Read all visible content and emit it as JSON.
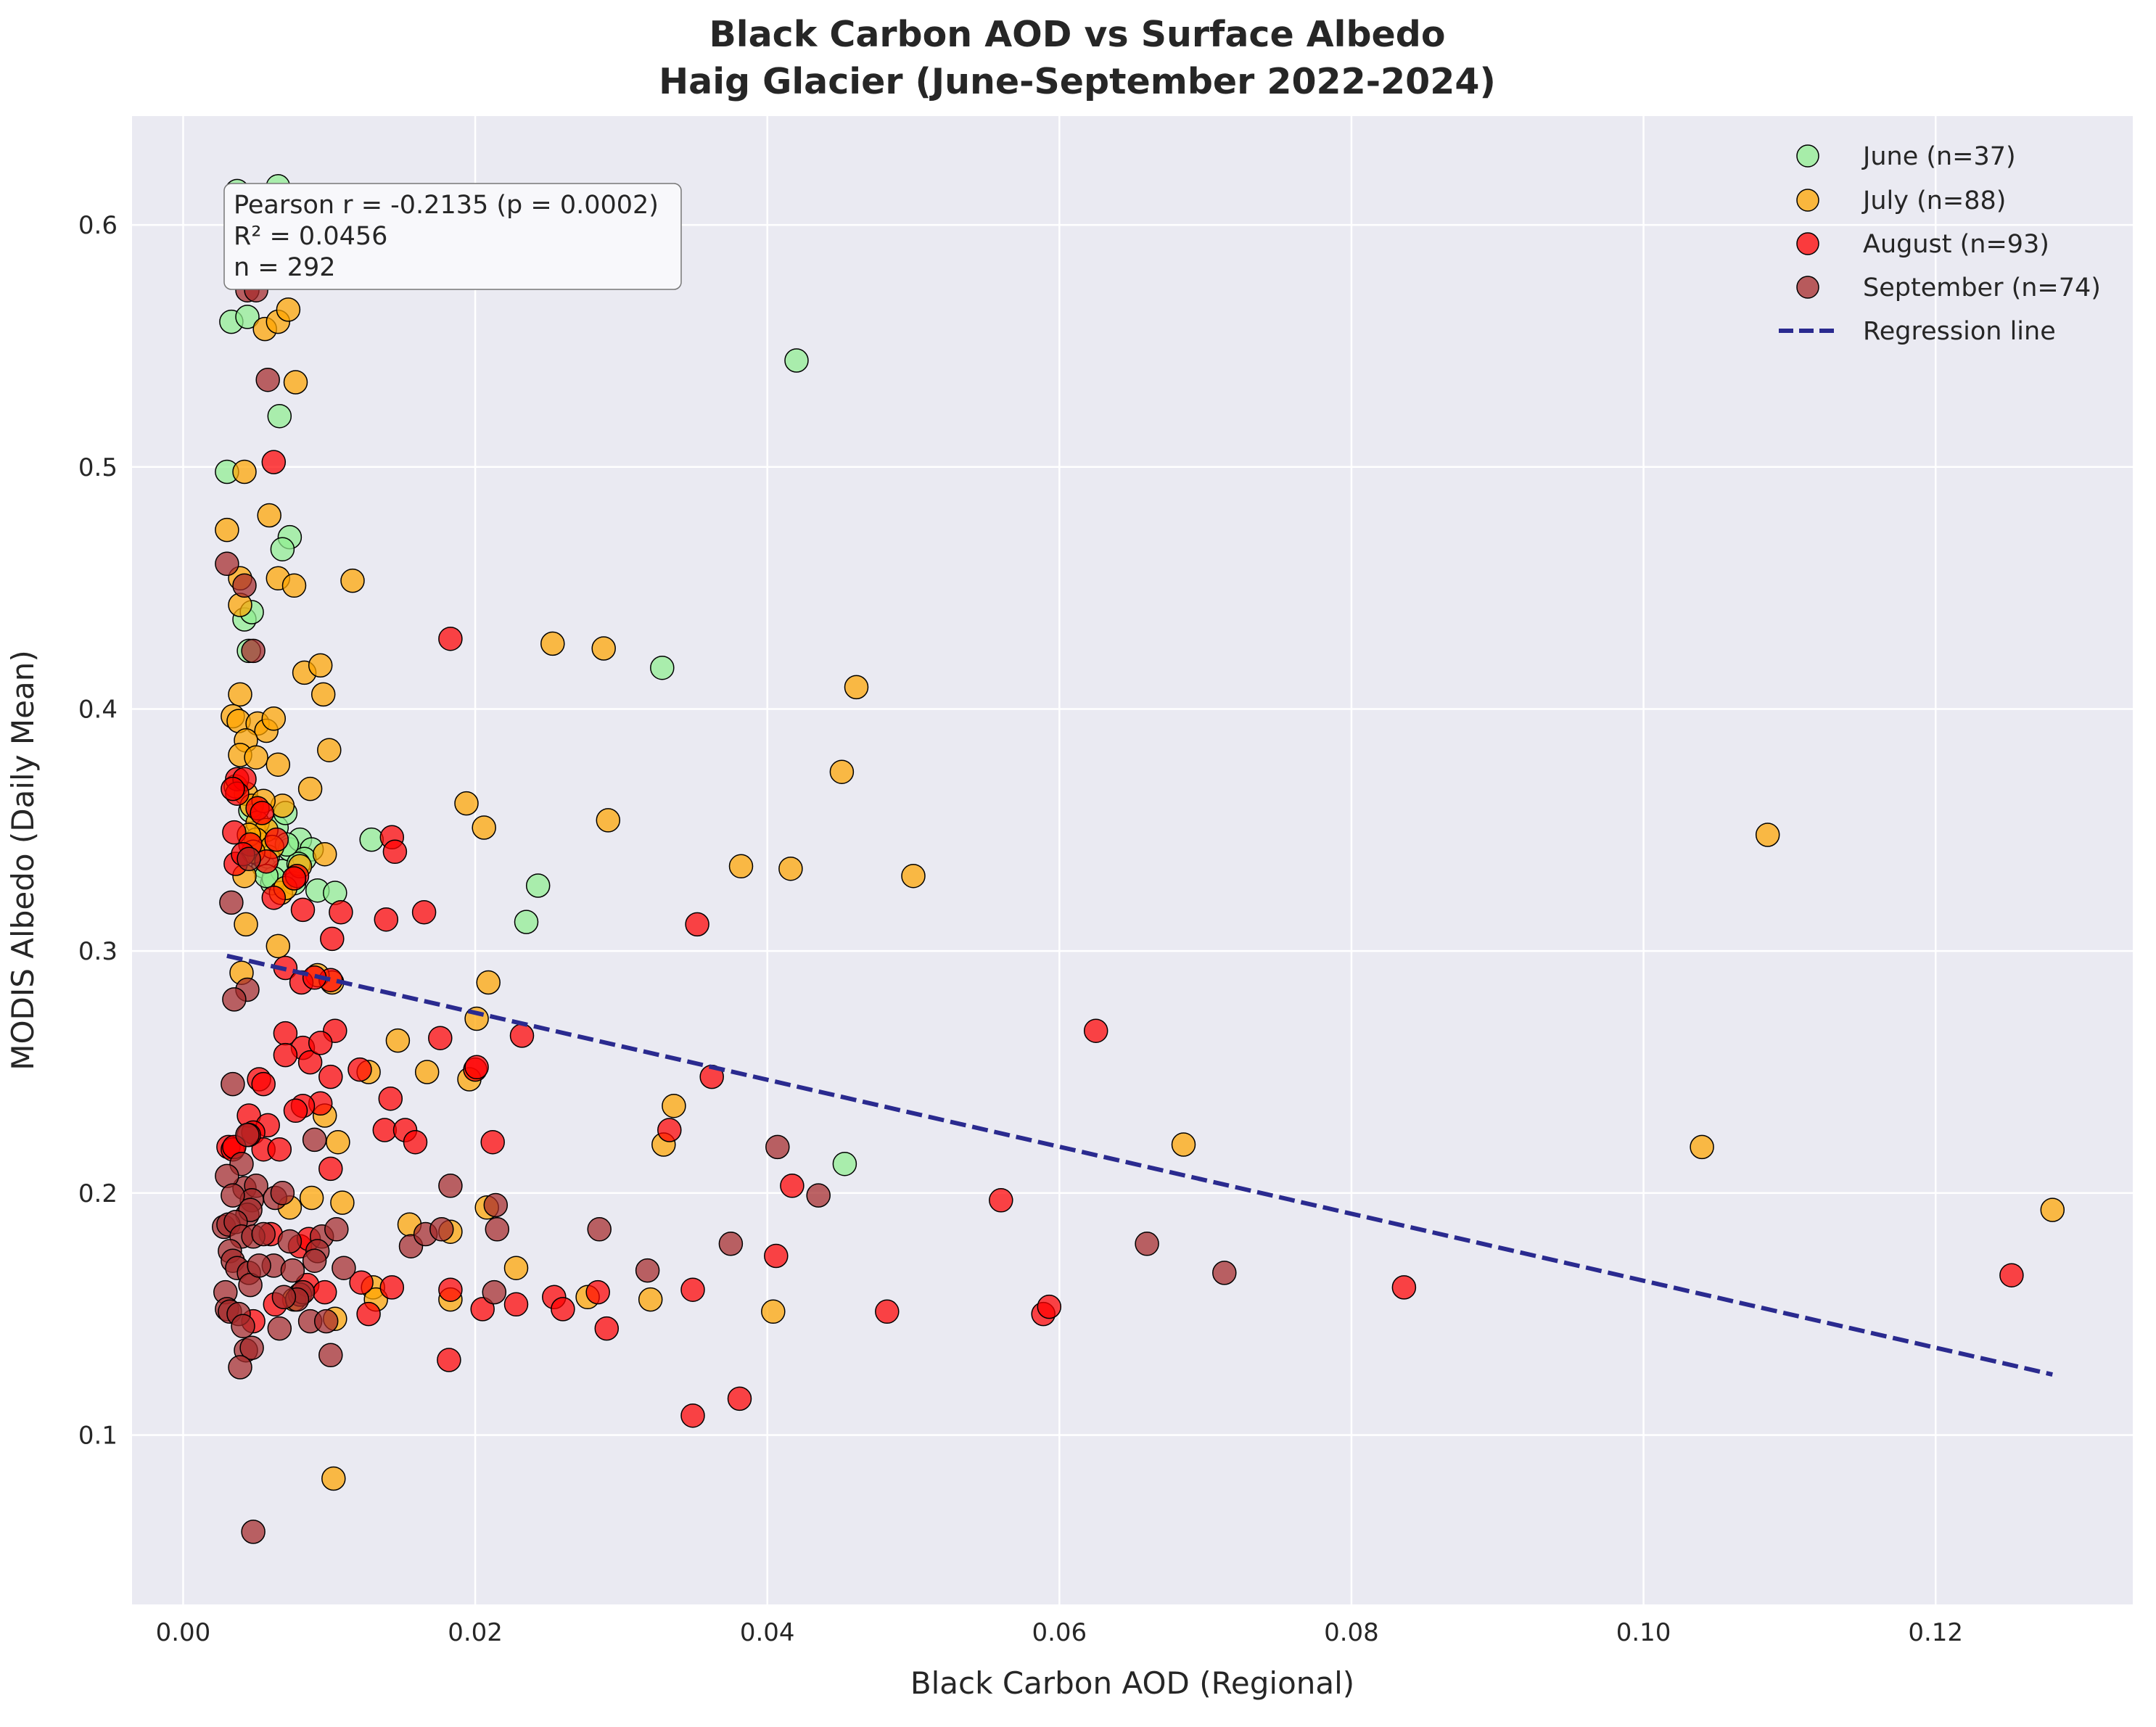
{
  "chart_data": {
    "type": "scatter",
    "title": "Black Carbon AOD vs Surface Albedo",
    "subtitle": "Haig Glacier (June-September 2022-2024)",
    "xlabel": "Black Carbon AOD (Regional)",
    "ylabel": "MODIS Albedo (Daily Mean)",
    "xlim": [
      -0.0035,
      0.1335
    ],
    "ylim": [
      0.03,
      0.645
    ],
    "xticks": [
      0.0,
      0.02,
      0.04,
      0.06,
      0.08,
      0.1,
      0.12
    ],
    "xtick_labels": [
      "0.00",
      "0.02",
      "0.04",
      "0.06",
      "0.08",
      "0.10",
      "0.12"
    ],
    "yticks": [
      0.1,
      0.2,
      0.3,
      0.4,
      0.5,
      0.6
    ],
    "ytick_labels": [
      "0.1",
      "0.2",
      "0.3",
      "0.4",
      "0.5",
      "0.6"
    ],
    "grid": true,
    "legend_position": "top-right",
    "stats_box": {
      "line1": "Pearson r = -0.2135 (p = 0.0002)",
      "line2": "R² = 0.0456",
      "line3": "n = 292"
    },
    "series": [
      {
        "name": "June (n=37)",
        "color": "#90ee90",
        "points": [
          [
            0.0037,
            0.614
          ],
          [
            0.0065,
            0.616
          ],
          [
            0.0033,
            0.56
          ],
          [
            0.0044,
            0.562
          ],
          [
            0.003,
            0.498
          ],
          [
            0.0066,
            0.521
          ],
          [
            0.0073,
            0.471
          ],
          [
            0.0068,
            0.466
          ],
          [
            0.0042,
            0.437
          ],
          [
            0.0047,
            0.44
          ],
          [
            0.0045,
            0.424
          ],
          [
            0.0055,
            0.335
          ],
          [
            0.0061,
            0.328
          ],
          [
            0.0068,
            0.333
          ],
          [
            0.0073,
            0.342
          ],
          [
            0.0076,
            0.328
          ],
          [
            0.008,
            0.346
          ],
          [
            0.0088,
            0.342
          ],
          [
            0.0092,
            0.325
          ],
          [
            0.0104,
            0.324
          ],
          [
            0.0129,
            0.346
          ],
          [
            0.0235,
            0.312
          ],
          [
            0.0243,
            0.327
          ],
          [
            0.0328,
            0.417
          ],
          [
            0.042,
            0.544
          ],
          [
            0.0453,
            0.212
          ],
          [
            0.005,
            0.349
          ],
          [
            0.0058,
            0.339
          ],
          [
            0.0064,
            0.351
          ],
          [
            0.007,
            0.357
          ],
          [
            0.0052,
            0.34
          ],
          [
            0.0046,
            0.358
          ],
          [
            0.0083,
            0.338
          ],
          [
            0.0079,
            0.336
          ],
          [
            0.0062,
            0.33
          ],
          [
            0.0057,
            0.331
          ],
          [
            0.0071,
            0.344
          ]
        ]
      },
      {
        "name": "July (n=88)",
        "color": "#ffa500",
        "points": [
          [
            0.0056,
            0.557
          ],
          [
            0.0065,
            0.56
          ],
          [
            0.0072,
            0.565
          ],
          [
            0.0077,
            0.535
          ],
          [
            0.0042,
            0.498
          ],
          [
            0.003,
            0.474
          ],
          [
            0.0059,
            0.48
          ],
          [
            0.0039,
            0.454
          ],
          [
            0.0065,
            0.454
          ],
          [
            0.0076,
            0.451
          ],
          [
            0.0039,
            0.443
          ],
          [
            0.0116,
            0.453
          ],
          [
            0.0083,
            0.415
          ],
          [
            0.0094,
            0.418
          ],
          [
            0.0096,
            0.406
          ],
          [
            0.0039,
            0.406
          ],
          [
            0.0034,
            0.397
          ],
          [
            0.0038,
            0.395
          ],
          [
            0.0051,
            0.394
          ],
          [
            0.0057,
            0.391
          ],
          [
            0.0062,
            0.396
          ],
          [
            0.0043,
            0.387
          ],
          [
            0.0039,
            0.381
          ],
          [
            0.005,
            0.38
          ],
          [
            0.0065,
            0.377
          ],
          [
            0.01,
            0.383
          ],
          [
            0.0087,
            0.367
          ],
          [
            0.0043,
            0.365
          ],
          [
            0.0047,
            0.36
          ],
          [
            0.0068,
            0.36
          ],
          [
            0.0051,
            0.353
          ],
          [
            0.0057,
            0.35
          ],
          [
            0.0097,
            0.34
          ],
          [
            0.0042,
            0.331
          ],
          [
            0.0067,
            0.324
          ],
          [
            0.0043,
            0.311
          ],
          [
            0.004,
            0.291
          ],
          [
            0.0102,
            0.287
          ],
          [
            0.0253,
            0.427
          ],
          [
            0.0288,
            0.425
          ],
          [
            0.0461,
            0.409
          ],
          [
            0.0451,
            0.374
          ],
          [
            0.0194,
            0.361
          ],
          [
            0.0206,
            0.351
          ],
          [
            0.0291,
            0.354
          ],
          [
            0.0382,
            0.335
          ],
          [
            0.0416,
            0.334
          ],
          [
            0.05,
            0.331
          ],
          [
            0.0209,
            0.287
          ],
          [
            0.1085,
            0.348
          ],
          [
            0.0201,
            0.272
          ],
          [
            0.0147,
            0.263
          ],
          [
            0.0127,
            0.25
          ],
          [
            0.0167,
            0.25
          ],
          [
            0.0196,
            0.247
          ],
          [
            0.0336,
            0.236
          ],
          [
            0.0329,
            0.22
          ],
          [
            0.0097,
            0.232
          ],
          [
            0.0106,
            0.221
          ],
          [
            0.0685,
            0.22
          ],
          [
            0.104,
            0.219
          ],
          [
            0.128,
            0.193
          ],
          [
            0.0155,
            0.187
          ],
          [
            0.0183,
            0.184
          ],
          [
            0.0208,
            0.194
          ],
          [
            0.0109,
            0.196
          ],
          [
            0.0088,
            0.198
          ],
          [
            0.0073,
            0.194
          ],
          [
            0.0228,
            0.169
          ],
          [
            0.013,
            0.161
          ],
          [
            0.0132,
            0.156
          ],
          [
            0.0183,
            0.156
          ],
          [
            0.0277,
            0.157
          ],
          [
            0.032,
            0.156
          ],
          [
            0.0404,
            0.151
          ],
          [
            0.0104,
            0.148
          ],
          [
            0.0076,
            0.156
          ],
          [
            0.0103,
            0.082
          ],
          [
            0.005,
            0.346
          ],
          [
            0.0055,
            0.362
          ],
          [
            0.0045,
            0.348
          ],
          [
            0.0061,
            0.343
          ],
          [
            0.008,
            0.335
          ],
          [
            0.0036,
            0.368
          ],
          [
            0.0048,
            0.341
          ],
          [
            0.007,
            0.326
          ],
          [
            0.0092,
            0.29
          ],
          [
            0.0065,
            0.302
          ]
        ]
      },
      {
        "name": "August (n=93)",
        "color": "#ff0000",
        "points": [
          [
            0.0062,
            0.502
          ],
          [
            0.0183,
            0.429
          ],
          [
            0.0037,
            0.371
          ],
          [
            0.0042,
            0.371
          ],
          [
            0.0037,
            0.365
          ],
          [
            0.0034,
            0.367
          ],
          [
            0.0051,
            0.359
          ],
          [
            0.0035,
            0.349
          ],
          [
            0.0064,
            0.346
          ],
          [
            0.0143,
            0.347
          ],
          [
            0.0145,
            0.341
          ],
          [
            0.0036,
            0.336
          ],
          [
            0.0046,
            0.344
          ],
          [
            0.0057,
            0.337
          ],
          [
            0.0078,
            0.331
          ],
          [
            0.0062,
            0.322
          ],
          [
            0.0082,
            0.317
          ],
          [
            0.0108,
            0.316
          ],
          [
            0.0139,
            0.313
          ],
          [
            0.0165,
            0.316
          ],
          [
            0.0352,
            0.311
          ],
          [
            0.0102,
            0.305
          ],
          [
            0.007,
            0.293
          ],
          [
            0.0101,
            0.288
          ],
          [
            0.0081,
            0.287
          ],
          [
            0.007,
            0.266
          ],
          [
            0.0104,
            0.267
          ],
          [
            0.0176,
            0.264
          ],
          [
            0.0232,
            0.265
          ],
          [
            0.0082,
            0.26
          ],
          [
            0.007,
            0.257
          ],
          [
            0.0087,
            0.254
          ],
          [
            0.0121,
            0.251
          ],
          [
            0.02,
            0.251
          ],
          [
            0.0101,
            0.248
          ],
          [
            0.0052,
            0.247
          ],
          [
            0.0362,
            0.248
          ],
          [
            0.0142,
            0.239
          ],
          [
            0.0045,
            0.232
          ],
          [
            0.0094,
            0.237
          ],
          [
            0.0082,
            0.236
          ],
          [
            0.0077,
            0.234
          ],
          [
            0.0058,
            0.228
          ],
          [
            0.0048,
            0.225
          ],
          [
            0.0138,
            0.226
          ],
          [
            0.0152,
            0.226
          ],
          [
            0.0333,
            0.226
          ],
          [
            0.0159,
            0.221
          ],
          [
            0.0212,
            0.221
          ],
          [
            0.0031,
            0.219
          ],
          [
            0.0034,
            0.218
          ],
          [
            0.0055,
            0.218
          ],
          [
            0.0066,
            0.218
          ],
          [
            0.0101,
            0.21
          ],
          [
            0.0417,
            0.203
          ],
          [
            0.0625,
            0.267
          ],
          [
            0.056,
            0.197
          ],
          [
            0.0085,
            0.162
          ],
          [
            0.008,
            0.178
          ],
          [
            0.0063,
            0.154
          ],
          [
            0.0097,
            0.159
          ],
          [
            0.0122,
            0.163
          ],
          [
            0.0143,
            0.161
          ],
          [
            0.0127,
            0.15
          ],
          [
            0.0183,
            0.16
          ],
          [
            0.0205,
            0.152
          ],
          [
            0.0228,
            0.154
          ],
          [
            0.0254,
            0.157
          ],
          [
            0.026,
            0.152
          ],
          [
            0.0284,
            0.159
          ],
          [
            0.029,
            0.144
          ],
          [
            0.0349,
            0.16
          ],
          [
            0.0406,
            0.174
          ],
          [
            0.0482,
            0.151
          ],
          [
            0.0589,
            0.15
          ],
          [
            0.0593,
            0.153
          ],
          [
            0.0836,
            0.161
          ],
          [
            0.1252,
            0.166
          ],
          [
            0.0182,
            0.131
          ],
          [
            0.0349,
            0.108
          ],
          [
            0.0381,
            0.115
          ],
          [
            0.0048,
            0.147
          ],
          [
            0.0055,
            0.245
          ],
          [
            0.0045,
            0.224
          ],
          [
            0.006,
            0.183
          ],
          [
            0.0086,
            0.181
          ],
          [
            0.0094,
            0.262
          ],
          [
            0.009,
            0.289
          ],
          [
            0.0035,
            0.219
          ],
          [
            0.0076,
            0.33
          ],
          [
            0.0041,
            0.34
          ],
          [
            0.0054,
            0.357
          ],
          [
            0.0201,
            0.252
          ]
        ]
      },
      {
        "name": "September (n=74)",
        "color": "#a52a2a",
        "points": [
          [
            0.0044,
            0.573
          ],
          [
            0.005,
            0.573
          ],
          [
            0.0058,
            0.536
          ],
          [
            0.003,
            0.46
          ],
          [
            0.0042,
            0.451
          ],
          [
            0.0048,
            0.424
          ],
          [
            0.0033,
            0.32
          ],
          [
            0.0044,
            0.284
          ],
          [
            0.0035,
            0.28
          ],
          [
            0.0045,
            0.338
          ],
          [
            0.0034,
            0.245
          ],
          [
            0.0044,
            0.224
          ],
          [
            0.004,
            0.212
          ],
          [
            0.0042,
            0.202
          ],
          [
            0.005,
            0.203
          ],
          [
            0.0047,
            0.197
          ],
          [
            0.003,
            0.207
          ],
          [
            0.0034,
            0.199
          ],
          [
            0.0044,
            0.191
          ],
          [
            0.0046,
            0.193
          ],
          [
            0.0028,
            0.186
          ],
          [
            0.0031,
            0.187
          ],
          [
            0.0036,
            0.188
          ],
          [
            0.004,
            0.182
          ],
          [
            0.0048,
            0.182
          ],
          [
            0.0055,
            0.183
          ],
          [
            0.0032,
            0.176
          ],
          [
            0.0034,
            0.172
          ],
          [
            0.0037,
            0.169
          ],
          [
            0.0045,
            0.167
          ],
          [
            0.0063,
            0.198
          ],
          [
            0.0068,
            0.2
          ],
          [
            0.0073,
            0.18
          ],
          [
            0.009,
            0.222
          ],
          [
            0.0095,
            0.182
          ],
          [
            0.0092,
            0.176
          ],
          [
            0.0105,
            0.185
          ],
          [
            0.011,
            0.169
          ],
          [
            0.0062,
            0.17
          ],
          [
            0.0075,
            0.168
          ],
          [
            0.008,
            0.158
          ],
          [
            0.0082,
            0.159
          ],
          [
            0.0046,
            0.162
          ],
          [
            0.0029,
            0.159
          ],
          [
            0.003,
            0.152
          ],
          [
            0.0032,
            0.151
          ],
          [
            0.0038,
            0.15
          ],
          [
            0.0041,
            0.145
          ],
          [
            0.0066,
            0.144
          ],
          [
            0.0087,
            0.147
          ],
          [
            0.0098,
            0.147
          ],
          [
            0.0043,
            0.135
          ],
          [
            0.0047,
            0.136
          ],
          [
            0.0101,
            0.133
          ],
          [
            0.0039,
            0.128
          ],
          [
            0.0048,
            0.06
          ],
          [
            0.0156,
            0.178
          ],
          [
            0.0166,
            0.183
          ],
          [
            0.0177,
            0.185
          ],
          [
            0.0183,
            0.203
          ],
          [
            0.0214,
            0.195
          ],
          [
            0.0215,
            0.185
          ],
          [
            0.0213,
            0.159
          ],
          [
            0.0285,
            0.185
          ],
          [
            0.0318,
            0.168
          ],
          [
            0.0375,
            0.179
          ],
          [
            0.0407,
            0.219
          ],
          [
            0.0435,
            0.199
          ],
          [
            0.066,
            0.179
          ],
          [
            0.0713,
            0.167
          ],
          [
            0.0078,
            0.156
          ],
          [
            0.0069,
            0.157
          ],
          [
            0.0052,
            0.17
          ],
          [
            0.009,
            0.172
          ]
        ]
      }
    ],
    "regression": {
      "name": "Regression line",
      "color": "#2a2a8f",
      "x": [
        0.003,
        0.128
      ],
      "y": [
        0.298,
        0.125
      ]
    }
  }
}
